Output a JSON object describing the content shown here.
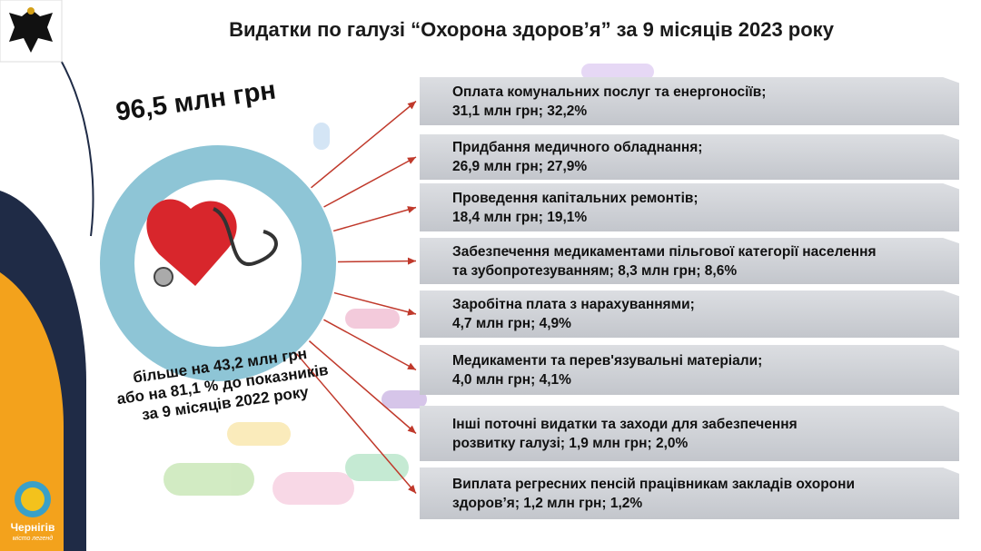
{
  "header": {
    "title": "Видатки по галузі “Охорона здоров’я” за 9 місяців 2023 року"
  },
  "total": "96,5 млн грн",
  "note": [
    "більше на 43,2 млн грн",
    "або на 81,1 % до показників",
    "за 9 місяців 2022 року"
  ],
  "items": [
    {
      "lines": [
        "Оплата комунальних послуг та енергоносіїв;",
        "31,1 млн грн; 32,2%"
      ]
    },
    {
      "lines": [
        "Придбання медичного обладнання;",
        "26,9 млн грн; 27,9%"
      ]
    },
    {
      "lines": [
        "Проведення капітальних ремонтів;",
        "18,4 млн грн; 19,1%"
      ]
    },
    {
      "lines": [
        "Забезпечення медикаментами пільгової категорії населення",
        "та зубопротезуванням; 8,3 млн грн; 8,6%"
      ]
    },
    {
      "lines": [
        "Заробітна плата з нарахуваннями;",
        "4,7 млн грн; 4,9%"
      ]
    },
    {
      "lines": [
        "Медикаменти та перев'язувальні матеріали;",
        "4,0 млн грн; 4,1%"
      ]
    },
    {
      "lines": [
        "Інші поточні видатки та заходи для забезпечення",
        "розвитку галузі; 1,9 млн грн; 2,0%"
      ]
    },
    {
      "lines": [
        "Виплата регресних пенсій працівникам закладів охорони",
        "здоров’я; 1,2 млн грн; 1,2%"
      ]
    }
  ],
  "logo": {
    "name": "Чернігів",
    "motto": "місто легенд"
  }
}
